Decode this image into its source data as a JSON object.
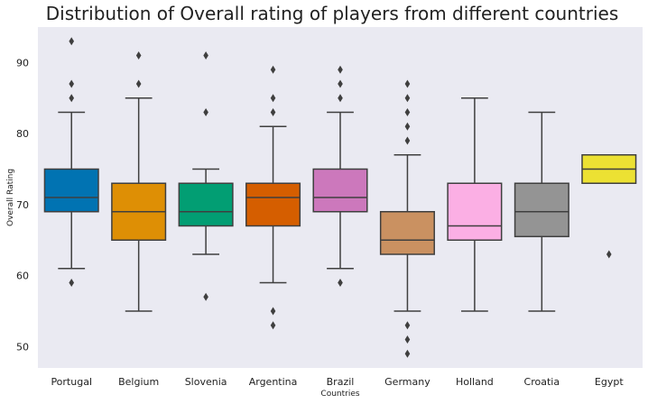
{
  "chart_data": {
    "type": "box",
    "title": "Distribution of Overall rating of players from different countries",
    "xlabel": "Countries",
    "ylabel": "Overall Rating",
    "ylim": [
      47,
      95
    ],
    "yticks": [
      50,
      60,
      70,
      80,
      90
    ],
    "grid": false,
    "categories": [
      "Portugal",
      "Belgium",
      "Slovenia",
      "Argentina",
      "Brazil",
      "Germany",
      "Holland",
      "Croatia",
      "Egypt"
    ],
    "boxes": [
      {
        "category": "Portugal",
        "whisker_low": 61,
        "q1": 69,
        "median": 71,
        "q3": 75,
        "whisker_high": 83,
        "outliers": [
          59,
          85,
          87,
          93
        ],
        "color": "#0173b2"
      },
      {
        "category": "Belgium",
        "whisker_low": 55,
        "q1": 65,
        "median": 69,
        "q3": 73,
        "whisker_high": 85,
        "outliers": [
          87,
          91
        ],
        "color": "#de8f05"
      },
      {
        "category": "Slovenia",
        "whisker_low": 63,
        "q1": 67,
        "median": 69,
        "q3": 73,
        "whisker_high": 75,
        "outliers": [
          57,
          83,
          91
        ],
        "color": "#029e73"
      },
      {
        "category": "Argentina",
        "whisker_low": 59,
        "q1": 67,
        "median": 71,
        "q3": 73,
        "whisker_high": 81,
        "outliers": [
          53,
          55,
          83,
          85,
          89
        ],
        "color": "#d55e00"
      },
      {
        "category": "Brazil",
        "whisker_low": 61,
        "q1": 69,
        "median": 71,
        "q3": 75,
        "whisker_high": 83,
        "outliers": [
          59,
          85,
          87,
          89
        ],
        "color": "#cc78bc"
      },
      {
        "category": "Germany",
        "whisker_low": 55,
        "q1": 63,
        "median": 65,
        "q3": 69,
        "whisker_high": 77,
        "outliers": [
          49,
          51,
          53,
          79,
          81,
          83,
          85,
          87
        ],
        "color": "#ca9161"
      },
      {
        "category": "Holland",
        "whisker_low": 55,
        "q1": 65,
        "median": 67,
        "q3": 73,
        "whisker_high": 85,
        "outliers": [],
        "color": "#fbafe4"
      },
      {
        "category": "Croatia",
        "whisker_low": 55,
        "q1": 65.5,
        "median": 69,
        "q3": 73,
        "whisker_high": 83,
        "outliers": [],
        "color": "#949494"
      },
      {
        "category": "Egypt",
        "whisker_low": 73,
        "q1": 73,
        "median": 75,
        "q3": 77,
        "whisker_high": 77,
        "outliers": [
          63
        ],
        "color": "#ece133"
      }
    ],
    "colors": {
      "plot_background": "#eaeaf2",
      "line": "#3f3f3f"
    }
  }
}
